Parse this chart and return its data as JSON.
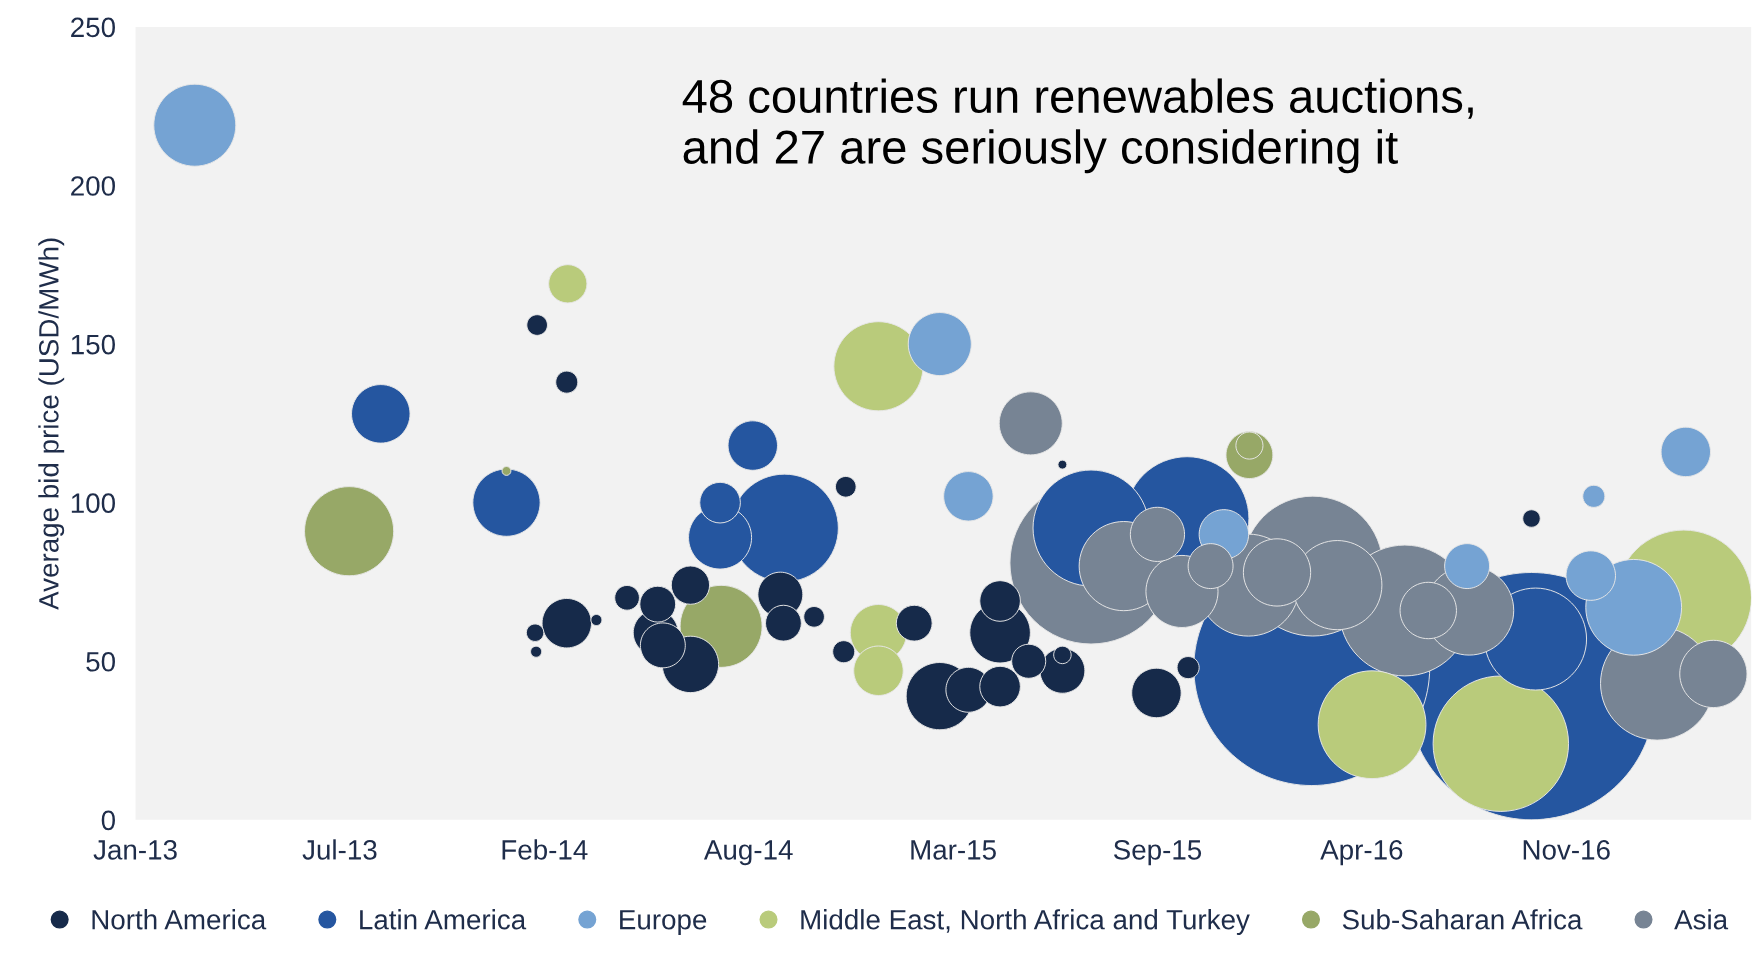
{
  "chart_data": {
    "type": "bubble",
    "ylabel": "Average bid price (USD/MWh)",
    "annotations": [
      "48 countries run renewables auctions,\nand 27 are seriously considering it"
    ],
    "xlim": [
      "2013-01-01",
      "2017-05-01"
    ],
    "ylim": [
      0,
      250
    ],
    "yticks": [
      0,
      50,
      100,
      150,
      200,
      250
    ],
    "xticks": [
      {
        "value": "2013-01-01",
        "label": "Jan-13"
      },
      {
        "value": "2013-07-20",
        "label": "Jul-13"
      },
      {
        "value": "2014-02-05",
        "label": "Feb-14"
      },
      {
        "value": "2014-08-24",
        "label": "Aug-14"
      },
      {
        "value": "2015-03-12",
        "label": "Mar-15"
      },
      {
        "value": "2015-09-28",
        "label": "Sep-15"
      },
      {
        "value": "2016-04-15",
        "label": "Apr-16"
      },
      {
        "value": "2016-11-01",
        "label": "Nov-16"
      }
    ],
    "grid": false,
    "legend": "bottom",
    "marker": "circle",
    "series": [
      {
        "name": "North America",
        "color": "#162a4a",
        "x": [
          "2014-01-29",
          "2014-02-27",
          "2014-02-27",
          "2014-01-27",
          "2014-01-28",
          "2014-03-28",
          "2014-04-27",
          "2014-05-27",
          "2014-06-28",
          "2014-05-25",
          "2014-06-01",
          "2014-06-28",
          "2014-09-24",
          "2014-09-27",
          "2014-10-27",
          "2014-11-27",
          "2014-11-25",
          "2015-02-02",
          "2015-02-27",
          "2015-03-27",
          "2015-04-27",
          "2015-04-27",
          "2015-04-27",
          "2015-05-25",
          "2015-06-27",
          "2015-06-27",
          "2015-06-27",
          "2015-09-27",
          "2015-10-28",
          "2016-09-28"
        ],
        "values": [
          156,
          138,
          62,
          59,
          53,
          63,
          70,
          68,
          74,
          59,
          55,
          49,
          71,
          62,
          64,
          105,
          53,
          62,
          39,
          41,
          69,
          59,
          42,
          50,
          52,
          47,
          112,
          40,
          48,
          95
        ],
        "sizes": [
          0.007,
          0.008,
          0.04,
          0.005,
          0.002,
          0.002,
          0.01,
          0.021,
          0.024,
          0.033,
          0.033,
          0.052,
          0.033,
          0.021,
          0.007,
          0.007,
          0.008,
          0.021,
          0.074,
          0.033,
          0.027,
          0.06,
          0.027,
          0.019,
          0.005,
          0.033,
          0.0013,
          0.04,
          0.008,
          0.005
        ]
      },
      {
        "name": "Latin America",
        "color": "#2556a0",
        "x": [
          "2013-08-29",
          "2013-12-30",
          "2014-08-28",
          "2014-07-27",
          "2014-07-27",
          "2014-09-28",
          "2015-07-25",
          "2015-10-27",
          "2016-02-26",
          "2016-09-28",
          "2016-10-02"
        ],
        "values": [
          128,
          100,
          118,
          100,
          89,
          92,
          92,
          95,
          48,
          39,
          57
        ],
        "sizes": [
          0.056,
          0.074,
          0.04,
          0.027,
          0.065,
          0.19,
          0.22,
          0.25,
          0.91,
          1,
          0.17
        ]
      },
      {
        "name": "Europe",
        "color": "#75a3d3",
        "x": [
          "2013-02-28",
          "2015-02-27",
          "2015-03-27",
          "2015-12-02",
          "2016-07-27",
          "2016-11-28",
          "2017-02-26",
          "2016-11-25",
          "2017-01-06"
        ],
        "values": [
          219,
          150,
          102,
          90,
          80,
          102,
          116,
          77,
          67
        ],
        "sizes": [
          0.11,
          0.065,
          0.04,
          0.04,
          0.033,
          0.008,
          0.04,
          0.04,
          0.15
        ]
      },
      {
        "name": "Middle East, North Africa and Turkey",
        "color": "#b9cb7b",
        "x": [
          "2014-02-28",
          "2014-12-29",
          "2014-12-29",
          "2014-12-29",
          "2016-04-25",
          "2016-08-29",
          "2017-02-24"
        ],
        "values": [
          169,
          143,
          59,
          47,
          30,
          24,
          70
        ],
        "sizes": [
          0.024,
          0.13,
          0.052,
          0.04,
          0.19,
          0.3,
          0.3
        ]
      },
      {
        "name": "Sub-Saharan Africa",
        "color": "#97a867",
        "x": [
          "2013-07-29",
          "2013-12-30",
          "2014-07-28",
          "2015-12-27",
          "2015-12-27"
        ],
        "values": [
          91,
          110,
          61,
          118,
          115
        ],
        "sizes": [
          0.13,
          0.0013,
          0.11,
          0.012,
          0.036
        ]
      },
      {
        "name": "Asia",
        "color": "#778494",
        "x": [
          "2015-05-27",
          "2015-07-25",
          "2015-08-26",
          "2015-09-28",
          "2015-10-22",
          "2015-11-19",
          "2015-12-26",
          "2016-01-23",
          "2016-02-27",
          "2016-03-22",
          "2016-05-27",
          "2016-06-19",
          "2016-07-29",
          "2017-01-29",
          "2017-03-25"
        ],
        "values": [
          125,
          81,
          80,
          90,
          72,
          80,
          74,
          78,
          80,
          74,
          66,
          66,
          66,
          43,
          46
        ],
        "sizes": [
          0.065,
          0.43,
          0.13,
          0.048,
          0.085,
          0.033,
          0.17,
          0.074,
          0.32,
          0.13,
          0.28,
          0.052,
          0.13,
          0.21,
          0.074
        ]
      }
    ]
  }
}
